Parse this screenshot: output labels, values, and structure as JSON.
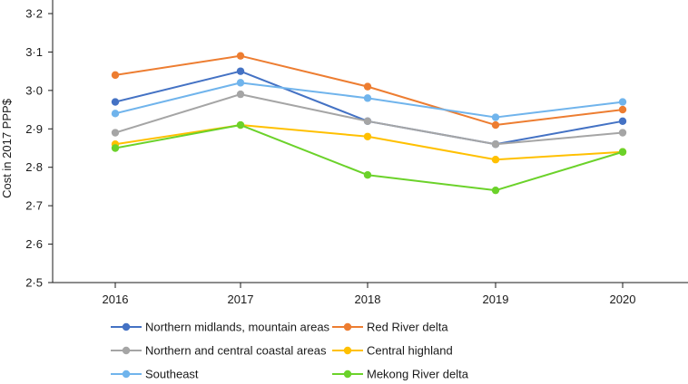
{
  "chart_data": {
    "type": "line",
    "title": "",
    "xlabel": "",
    "ylabel": "Cost in 2017 PPP$",
    "categories": [
      "2016",
      "2017",
      "2018",
      "2019",
      "2020"
    ],
    "ylim": [
      2.5,
      3.2
    ],
    "yticks": [
      2.5,
      2.6,
      2.7,
      2.8,
      2.9,
      3.0,
      3.1,
      3.2
    ],
    "ytick_labels": [
      "2·5",
      "2·6",
      "2·7",
      "2·8",
      "2·9",
      "3·0",
      "3·1",
      "3·2"
    ],
    "grid": false,
    "legend_position": "bottom",
    "series": [
      {
        "name": "Northern midlands, mountain areas",
        "color": "#4472C4",
        "values": [
          2.97,
          3.05,
          2.92,
          2.86,
          2.92
        ]
      },
      {
        "name": "Red River delta",
        "color": "#ED7D31",
        "values": [
          3.04,
          3.09,
          3.01,
          2.91,
          2.95
        ]
      },
      {
        "name": "Northern and central coastal areas",
        "color": "#A5A5A5",
        "values": [
          2.89,
          2.99,
          2.92,
          2.86,
          2.89
        ]
      },
      {
        "name": "Central highland",
        "color": "#FFC000",
        "values": [
          2.86,
          2.91,
          2.88,
          2.82,
          2.84
        ]
      },
      {
        "name": "Southeast",
        "color": "#70B4EC",
        "values": [
          2.94,
          3.02,
          2.98,
          2.93,
          2.97
        ]
      },
      {
        "name": "Mekong River delta",
        "color": "#6BD22A",
        "values": [
          2.85,
          2.91,
          2.78,
          2.74,
          2.84
        ]
      }
    ]
  }
}
